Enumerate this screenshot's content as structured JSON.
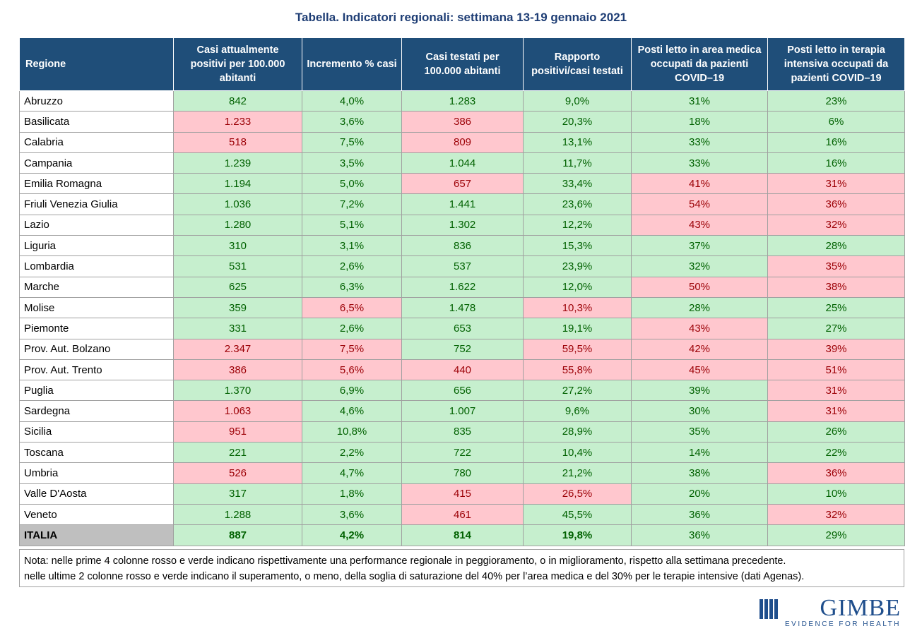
{
  "header": {
    "title": "Tabella. Indicatori regionali: settimana 13-19 gennaio 2021"
  },
  "table": {
    "columns": [
      "Regione",
      "Casi attualmente positivi per 100.000 abitanti",
      "Incremento % casi",
      "Casi testati per 100.000 abitanti",
      "Rapporto positivi/casi testati",
      "Posti letto in area medica occupati da pazienti COVID–19",
      "Posti letto in terapia intensiva occupati da pazienti COVID–19"
    ],
    "rows": [
      {
        "cells": [
          "Abruzzo",
          "842",
          "4,0%",
          "1.283",
          "9,0%",
          "31%",
          "23%"
        ],
        "fills": [
          "#c6efce",
          "#c6efce",
          "#c6efce",
          "#c6efce",
          "#c6efce",
          "#c6efce"
        ]
      },
      {
        "cells": [
          "Basilicata",
          "1.233",
          "3,6%",
          "386",
          "20,3%",
          "18%",
          "6%"
        ],
        "fills": [
          "#ffc7ce",
          "#c6efce",
          "#ffc7ce",
          "#c6efce",
          "#c6efce",
          "#c6efce"
        ]
      },
      {
        "cells": [
          "Calabria",
          "518",
          "7,5%",
          "809",
          "13,1%",
          "33%",
          "16%"
        ],
        "fills": [
          "#ffc7ce",
          "#c6efce",
          "#ffc7ce",
          "#c6efce",
          "#c6efce",
          "#c6efce"
        ]
      },
      {
        "cells": [
          "Campania",
          "1.239",
          "3,5%",
          "1.044",
          "11,7%",
          "33%",
          "16%"
        ],
        "fills": [
          "#c6efce",
          "#c6efce",
          "#c6efce",
          "#c6efce",
          "#c6efce",
          "#c6efce"
        ]
      },
      {
        "cells": [
          "Emilia Romagna",
          "1.194",
          "5,0%",
          "657",
          "33,4%",
          "41%",
          "31%"
        ],
        "fills": [
          "#c6efce",
          "#c6efce",
          "#ffc7ce",
          "#c6efce",
          "#ffc7ce",
          "#ffc7ce"
        ]
      },
      {
        "cells": [
          "Friuli Venezia Giulia",
          "1.036",
          "7,2%",
          "1.441",
          "23,6%",
          "54%",
          "36%"
        ],
        "fills": [
          "#c6efce",
          "#c6efce",
          "#c6efce",
          "#c6efce",
          "#ffc7ce",
          "#ffc7ce"
        ]
      },
      {
        "cells": [
          "Lazio",
          "1.280",
          "5,1%",
          "1.302",
          "12,2%",
          "43%",
          "32%"
        ],
        "fills": [
          "#c6efce",
          "#c6efce",
          "#c6efce",
          "#c6efce",
          "#ffc7ce",
          "#ffc7ce"
        ]
      },
      {
        "cells": [
          "Liguria",
          "310",
          "3,1%",
          "836",
          "15,3%",
          "37%",
          "28%"
        ],
        "fills": [
          "#c6efce",
          "#c6efce",
          "#c6efce",
          "#c6efce",
          "#c6efce",
          "#c6efce"
        ]
      },
      {
        "cells": [
          "Lombardia",
          "531",
          "2,6%",
          "537",
          "23,9%",
          "32%",
          "35%"
        ],
        "fills": [
          "#c6efce",
          "#c6efce",
          "#c6efce",
          "#c6efce",
          "#c6efce",
          "#ffc7ce"
        ]
      },
      {
        "cells": [
          "Marche",
          "625",
          "6,3%",
          "1.622",
          "12,0%",
          "50%",
          "38%"
        ],
        "fills": [
          "#c6efce",
          "#c6efce",
          "#c6efce",
          "#c6efce",
          "#ffc7ce",
          "#ffc7ce"
        ]
      },
      {
        "cells": [
          "Molise",
          "359",
          "6,5%",
          "1.478",
          "10,3%",
          "28%",
          "25%"
        ],
        "fills": [
          "#c6efce",
          "#ffc7ce",
          "#c6efce",
          "#ffc7ce",
          "#c6efce",
          "#c6efce"
        ]
      },
      {
        "cells": [
          "Piemonte",
          "331",
          "2,6%",
          "653",
          "19,1%",
          "43%",
          "27%"
        ],
        "fills": [
          "#c6efce",
          "#c6efce",
          "#c6efce",
          "#c6efce",
          "#ffc7ce",
          "#c6efce"
        ]
      },
      {
        "cells": [
          "Prov. Aut. Bolzano",
          "2.347",
          "7,5%",
          "752",
          "59,5%",
          "42%",
          "39%"
        ],
        "fills": [
          "#ffc7ce",
          "#ffc7ce",
          "#c6efce",
          "#ffc7ce",
          "#ffc7ce",
          "#ffc7ce"
        ]
      },
      {
        "cells": [
          "Prov. Aut. Trento",
          "386",
          "5,6%",
          "440",
          "55,8%",
          "45%",
          "51%"
        ],
        "fills": [
          "#ffc7ce",
          "#ffc7ce",
          "#ffc7ce",
          "#ffc7ce",
          "#ffc7ce",
          "#ffc7ce"
        ]
      },
      {
        "cells": [
          "Puglia",
          "1.370",
          "6,9%",
          "656",
          "27,2%",
          "39%",
          "31%"
        ],
        "fills": [
          "#c6efce",
          "#c6efce",
          "#c6efce",
          "#c6efce",
          "#c6efce",
          "#ffc7ce"
        ]
      },
      {
        "cells": [
          "Sardegna",
          "1.063",
          "4,6%",
          "1.007",
          "9,6%",
          "30%",
          "31%"
        ],
        "fills": [
          "#ffc7ce",
          "#c6efce",
          "#c6efce",
          "#c6efce",
          "#c6efce",
          "#ffc7ce"
        ]
      },
      {
        "cells": [
          "Sicilia",
          "951",
          "10,8%",
          "835",
          "28,9%",
          "35%",
          "26%"
        ],
        "fills": [
          "#ffc7ce",
          "#c6efce",
          "#c6efce",
          "#c6efce",
          "#c6efce",
          "#c6efce"
        ]
      },
      {
        "cells": [
          "Toscana",
          "221",
          "2,2%",
          "722",
          "10,4%",
          "14%",
          "22%"
        ],
        "fills": [
          "#c6efce",
          "#c6efce",
          "#c6efce",
          "#c6efce",
          "#c6efce",
          "#c6efce"
        ]
      },
      {
        "cells": [
          "Umbria",
          "526",
          "4,7%",
          "780",
          "21,2%",
          "38%",
          "36%"
        ],
        "fills": [
          "#ffc7ce",
          "#c6efce",
          "#c6efce",
          "#c6efce",
          "#c6efce",
          "#ffc7ce"
        ]
      },
      {
        "cells": [
          "Valle D'Aosta",
          "317",
          "1,8%",
          "415",
          "26,5%",
          "20%",
          "10%"
        ],
        "fills": [
          "#c6efce",
          "#c6efce",
          "#ffc7ce",
          "#ffc7ce",
          "#c6efce",
          "#c6efce"
        ]
      },
      {
        "cells": [
          "Veneto",
          "1.288",
          "3,6%",
          "461",
          "45,5%",
          "36%",
          "32%"
        ],
        "fills": [
          "#c6efce",
          "#c6efce",
          "#ffc7ce",
          "#c6efce",
          "#c6efce",
          "#ffc7ce"
        ]
      },
      {
        "cells": [
          "ITALIA",
          "887",
          "4,2%",
          "814",
          "19,8%",
          "36%",
          "29%"
        ],
        "fills": [
          "#c6efce",
          "#c6efce",
          "#c6efce",
          "#c6efce",
          "#c6efce",
          "#c6efce"
        ]
      }
    ]
  },
  "note": {
    "lines": [
      "Nota: nelle prime 4 colonne rosso e verde indicano rispettivamente una performance regionale in peggioramento, o in miglioramento, rispetto alla settimana precedente.",
      "nelle ultime 2 colonne rosso e verde indicano il superamento, o meno, della soglia di saturazione del 40% per l’area medica e del 30% per le terapie intensive (dati Agenas)."
    ]
  },
  "logo": {
    "name": "GIMBE",
    "tagline": "EVIDENCE FOR HEALTH"
  }
}
